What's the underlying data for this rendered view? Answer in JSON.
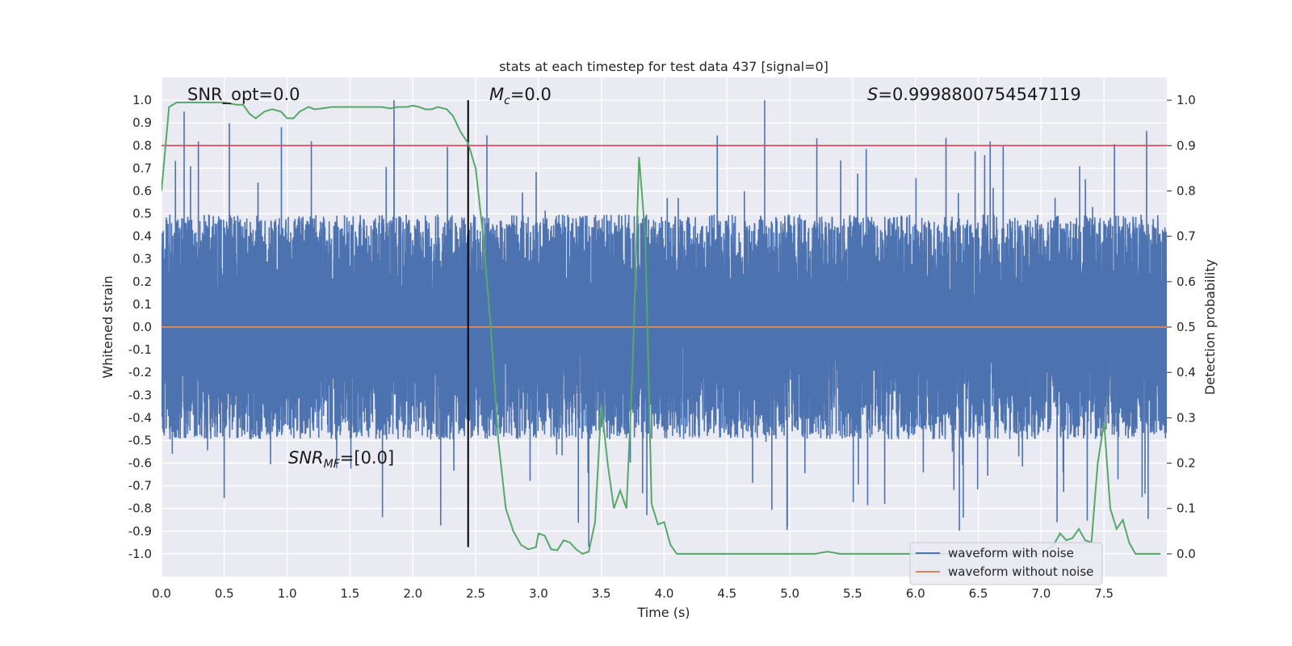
{
  "chart_data": {
    "type": "line",
    "title": "stats at each timestep for test data 437 [signal=0]",
    "xlabel": "Time (s)",
    "ylabel": "Whitened strain",
    "y2label": "Detection probability",
    "xlim": [
      0.0,
      8.0
    ],
    "ylim": [
      -1.1,
      1.1
    ],
    "y2lim": [
      -0.05,
      1.05
    ],
    "x_ticks": [
      0.0,
      0.5,
      1.0,
      1.5,
      2.0,
      2.5,
      3.0,
      3.5,
      4.0,
      4.5,
      5.0,
      5.5,
      6.0,
      6.5,
      7.0,
      7.5
    ],
    "y_ticks": [
      -1.0,
      -0.9,
      -0.8,
      -0.7,
      -0.6,
      -0.5,
      -0.4,
      -0.3,
      -0.2,
      -0.1,
      0.0,
      0.1,
      0.2,
      0.3,
      0.4,
      0.5,
      0.6,
      0.7,
      0.8,
      0.9,
      1.0
    ],
    "y2_ticks": [
      0.0,
      0.1,
      0.2,
      0.3,
      0.4,
      0.5,
      0.6,
      0.7,
      0.8,
      0.9,
      1.0
    ],
    "grid": true,
    "legend_placement": "lower-right",
    "threshold": {
      "y2": 0.9,
      "color": "#c44e52"
    },
    "marker_line": {
      "x": 2.44,
      "y_from": -0.97,
      "y_to": 1.0,
      "color": "#000000"
    },
    "annotations": {
      "snr_opt": "SNR_opt=0.0",
      "mc_symbol": "M",
      "mc_sub": "c",
      "mc_value": "=0.0",
      "s_symbol": "S",
      "s_value": "=0.9998800754547119",
      "snr_mf_symbol": "SNR",
      "snr_mf_sub": "MF",
      "snr_mf_value": "=[0.0]"
    },
    "series": [
      {
        "name": "waveform with noise",
        "color": "#4c72b0",
        "axis": "left",
        "kind": "noise",
        "sample_rate_hz": 2048,
        "typical_peak": 0.5,
        "max_peak": 1.0,
        "min_peak": -0.97
      },
      {
        "name": "waveform without noise",
        "color": "#dd8452",
        "axis": "left",
        "x": [
          0.0,
          8.0
        ],
        "values": [
          0.0,
          0.0
        ]
      },
      {
        "name": "",
        "color": "#55a868",
        "axis": "right",
        "x": [
          0.0,
          0.06,
          0.12,
          0.2,
          0.3,
          0.4,
          0.5,
          0.6,
          0.65,
          0.7,
          0.75,
          0.82,
          0.88,
          0.95,
          1.0,
          1.05,
          1.1,
          1.17,
          1.22,
          1.28,
          1.35,
          1.45,
          1.55,
          1.65,
          1.75,
          1.82,
          1.88,
          1.95,
          2.0,
          2.05,
          2.1,
          2.15,
          2.2,
          2.27,
          2.32,
          2.38,
          2.44,
          2.5,
          2.56,
          2.62,
          2.68,
          2.74,
          2.8,
          2.86,
          2.92,
          2.98,
          3.0,
          3.05,
          3.1,
          3.15,
          3.2,
          3.25,
          3.3,
          3.35,
          3.4,
          3.45,
          3.5,
          3.55,
          3.6,
          3.65,
          3.7,
          3.75,
          3.8,
          3.85,
          3.9,
          3.95,
          4.0,
          4.05,
          4.1,
          4.15,
          4.2,
          4.3,
          4.4,
          4.5,
          4.6,
          4.7,
          4.8,
          4.9,
          5.0,
          5.1,
          5.2,
          5.3,
          5.4,
          5.5,
          5.6,
          5.7,
          5.8,
          5.9,
          6.0,
          6.1,
          6.2,
          6.3,
          6.4,
          6.5,
          6.6,
          6.7,
          6.8,
          6.9,
          7.0,
          7.1,
          7.15,
          7.2,
          7.25,
          7.3,
          7.35,
          7.4,
          7.45,
          7.5,
          7.55,
          7.6,
          7.65,
          7.7,
          7.75,
          7.8,
          7.85,
          7.9,
          7.95
        ],
        "values": [
          0.8,
          0.985,
          0.995,
          0.995,
          0.995,
          0.995,
          0.995,
          0.99,
          0.99,
          0.97,
          0.96,
          0.975,
          0.98,
          0.975,
          0.96,
          0.96,
          0.975,
          0.985,
          0.98,
          0.982,
          0.985,
          0.985,
          0.985,
          0.985,
          0.985,
          0.982,
          0.985,
          0.985,
          0.988,
          0.985,
          0.98,
          0.98,
          0.985,
          0.98,
          0.965,
          0.93,
          0.905,
          0.85,
          0.7,
          0.5,
          0.25,
          0.1,
          0.05,
          0.02,
          0.01,
          0.015,
          0.045,
          0.04,
          0.01,
          0.008,
          0.03,
          0.025,
          0.01,
          0.0,
          0.005,
          0.07,
          0.33,
          0.2,
          0.1,
          0.14,
          0.1,
          0.42,
          0.875,
          0.7,
          0.11,
          0.065,
          0.07,
          0.02,
          0.0,
          0.0,
          0.0,
          0.0,
          0.0,
          0.0,
          0.0,
          0.0,
          0.0,
          0.0,
          0.0,
          0.0,
          0.0,
          0.005,
          0.0,
          0.0,
          0.0,
          0.0,
          0.0,
          0.0,
          0.0,
          0.0,
          0.0,
          0.0,
          0.0,
          0.0,
          0.0,
          0.0,
          0.0,
          0.0,
          0.0,
          0.02,
          0.045,
          0.03,
          0.035,
          0.055,
          0.03,
          0.025,
          0.2,
          0.29,
          0.1,
          0.055,
          0.075,
          0.025,
          0.0,
          0.0,
          0.0,
          0.0,
          0.0
        ]
      }
    ]
  }
}
